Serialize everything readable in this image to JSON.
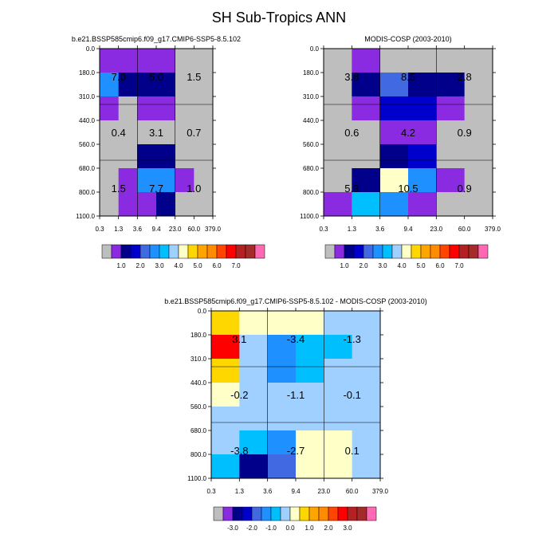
{
  "figure_title": "SH Sub-Tropics ANN",
  "palette": {
    "gray": "#bebebe",
    "purple": "#8a2be2",
    "navy": "#00008b",
    "blue": "#0000cd",
    "royal": "#4169e1",
    "dodger": "#1e90ff",
    "deepsky": "#00bfff",
    "lightblue": "#a0d0ff",
    "cream": "#ffffc8",
    "gold": "#ffd700",
    "orange": "#ffa500",
    "darkorange": "#ff8c00",
    "orangered": "#ff4500",
    "red": "#ff0000",
    "firebrick": "#b22222",
    "brown": "#a52a2a",
    "pink": "#ff69b4"
  },
  "colorbar_abs": {
    "colors": [
      "gray",
      "purple",
      "navy",
      "blue",
      "royal",
      "dodger",
      "deepsky",
      "lightblue",
      "cream",
      "gold",
      "orange",
      "darkorange",
      "orangered",
      "red",
      "firebrick",
      "brown",
      "pink"
    ],
    "labels": [
      "1.0",
      "2.0",
      "3.0",
      "4.0",
      "5.0",
      "6.0",
      "7.0"
    ]
  },
  "colorbar_diff": {
    "colors": [
      "gray",
      "purple",
      "navy",
      "blue",
      "royal",
      "dodger",
      "deepsky",
      "lightblue",
      "cream",
      "gold",
      "orange",
      "darkorange",
      "orangered",
      "red",
      "firebrick",
      "brown",
      "pink"
    ],
    "labels": [
      "-3.0",
      "-2.0",
      "-1.0",
      "0.0",
      "1.0",
      "2.0",
      "3.0"
    ]
  },
  "chart_data": [
    {
      "type": "heatmap",
      "title": "b.e21.BSSP585cmip6.f09_g17.CMIP6-SSP5-8.5.102",
      "x_ticks": [
        "0.3",
        "1.3",
        "3.6",
        "9.4",
        "23.0",
        "60.0",
        "379.0"
      ],
      "y_ticks": [
        "0.0",
        "180.0",
        "310.0",
        "440.0",
        "560.0",
        "680.0",
        "800.0",
        "1100.0"
      ],
      "cells": [
        [
          "purple",
          "purple",
          "purple",
          "purple",
          "gray",
          "gray"
        ],
        [
          "dodger",
          "navy",
          "navy",
          "navy",
          "gray",
          "gray"
        ],
        [
          "purple",
          "gray",
          "purple",
          "purple",
          "gray",
          "gray"
        ],
        [
          "gray",
          "gray",
          "gray",
          "gray",
          "gray",
          "gray"
        ],
        [
          "gray",
          "gray",
          "navy",
          "navy",
          "gray",
          "gray"
        ],
        [
          "gray",
          "purple",
          "dodger",
          "dodger",
          "purple",
          "gray"
        ],
        [
          "gray",
          "purple",
          "purple",
          "navy",
          "gray",
          "gray"
        ]
      ],
      "values": [
        "7.0",
        "5.0",
        "1.5",
        "0.4",
        "3.1",
        "0.7",
        "1.5",
        "7.7",
        "1.0"
      ]
    },
    {
      "type": "heatmap",
      "title": "MODIS-COSP (2003-2010)",
      "x_ticks": [
        "0.3",
        "1.3",
        "3.6",
        "9.4",
        "23.0",
        "60.0",
        "379.0"
      ],
      "y_ticks": [
        "0.0",
        "180.0",
        "310.0",
        "440.0",
        "560.0",
        "680.0",
        "800.0",
        "1100.0"
      ],
      "cells": [
        [
          "gray",
          "purple",
          "gray",
          "gray",
          "gray",
          "gray"
        ],
        [
          "gray",
          "navy",
          "royal",
          "navy",
          "navy",
          "gray"
        ],
        [
          "gray",
          "purple",
          "blue",
          "blue",
          "purple",
          "gray"
        ],
        [
          "gray",
          "gray",
          "purple",
          "purple",
          "gray",
          "gray"
        ],
        [
          "gray",
          "gray",
          "navy",
          "blue",
          "gray",
          "gray"
        ],
        [
          "gray",
          "navy",
          "cream",
          "dodger",
          "purple",
          "gray"
        ],
        [
          "purple",
          "deepsky",
          "dodger",
          "purple",
          "gray",
          "gray"
        ]
      ],
      "values": [
        "3.8",
        "8.5",
        "2.8",
        "0.6",
        "4.2",
        "0.9",
        "5.3",
        "10.5",
        "0.9"
      ]
    },
    {
      "type": "heatmap",
      "title": "b.e21.BSSP585cmip6.f09_g17.CMIP6-SSP5-8.5.102 - MODIS-COSP (2003-2010)",
      "x_ticks": [
        "0.3",
        "1.3",
        "3.6",
        "9.4",
        "23.0",
        "60.0",
        "379.0"
      ],
      "y_ticks": [
        "0.0",
        "180.0",
        "310.0",
        "440.0",
        "560.0",
        "680.0",
        "800.0",
        "1100.0"
      ],
      "cells": [
        [
          "gold",
          "cream",
          "cream",
          "cream",
          "lightblue",
          "lightblue"
        ],
        [
          "red",
          "lightblue",
          "dodger",
          "deepsky",
          "deepsky",
          "lightblue"
        ],
        [
          "gold",
          "lightblue",
          "dodger",
          "deepsky",
          "lightblue",
          "lightblue"
        ],
        [
          "cream",
          "lightblue",
          "lightblue",
          "lightblue",
          "lightblue",
          "lightblue"
        ],
        [
          "lightblue",
          "lightblue",
          "lightblue",
          "lightblue",
          "lightblue",
          "lightblue"
        ],
        [
          "lightblue",
          "deepsky",
          "dodger",
          "cream",
          "cream",
          "lightblue"
        ],
        [
          "deepsky",
          "navy",
          "royal",
          "cream",
          "cream",
          "lightblue"
        ]
      ],
      "values": [
        "3.1",
        "-3.4",
        "-1.3",
        "-0.2",
        "-1.1",
        "-0.1",
        "-3.8",
        "-2.7",
        "0.1"
      ]
    }
  ]
}
